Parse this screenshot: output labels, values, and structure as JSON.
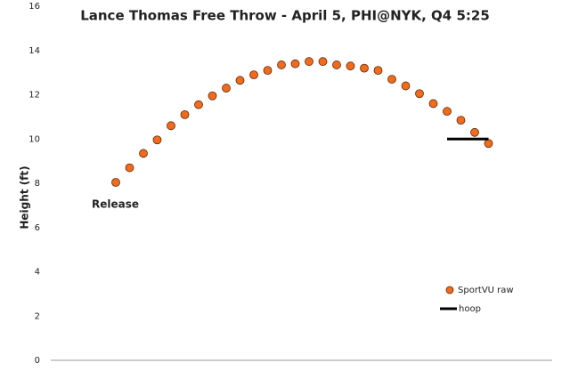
{
  "chart_data": {
    "type": "scatter",
    "title": "Lance Thomas Free Throw - April 5, PHI@NYK, Q4 5:25",
    "y_label": "Height (ft)",
    "annotation": "Release",
    "categories": [
      null,
      null,
      null,
      null,
      null,
      null,
      null,
      null,
      null,
      null,
      null,
      null,
      null,
      null,
      null,
      null,
      null,
      null,
      null,
      null,
      null,
      null,
      null,
      null,
      null,
      null,
      null,
      null
    ],
    "series": [
      {
        "name": "SportVU raw",
        "color": "#f26b1d",
        "mark": "dot",
        "values": [
          8.04,
          8.7,
          9.35,
          9.96,
          10.6,
          11.1,
          11.55,
          11.95,
          12.3,
          12.65,
          12.9,
          13.1,
          13.35,
          13.4,
          13.5,
          13.5,
          13.35,
          13.3,
          13.2,
          13.1,
          12.7,
          12.4,
          12.05,
          11.6,
          11.25,
          10.85,
          10.3,
          9.8
        ]
      },
      {
        "name": "hoop",
        "color": "#000000",
        "mark": "line",
        "values": [
          null,
          null,
          null,
          null,
          null,
          null,
          null,
          null,
          null,
          null,
          null,
          null,
          null,
          null,
          null,
          null,
          null,
          null,
          null,
          null,
          null,
          null,
          null,
          null,
          10,
          10,
          10,
          10
        ]
      }
    ],
    "ylim": [
      0,
      16
    ],
    "yticks": [
      0,
      2,
      4,
      6,
      8,
      10,
      12,
      14,
      16
    ],
    "grid": false,
    "legend": "right"
  }
}
